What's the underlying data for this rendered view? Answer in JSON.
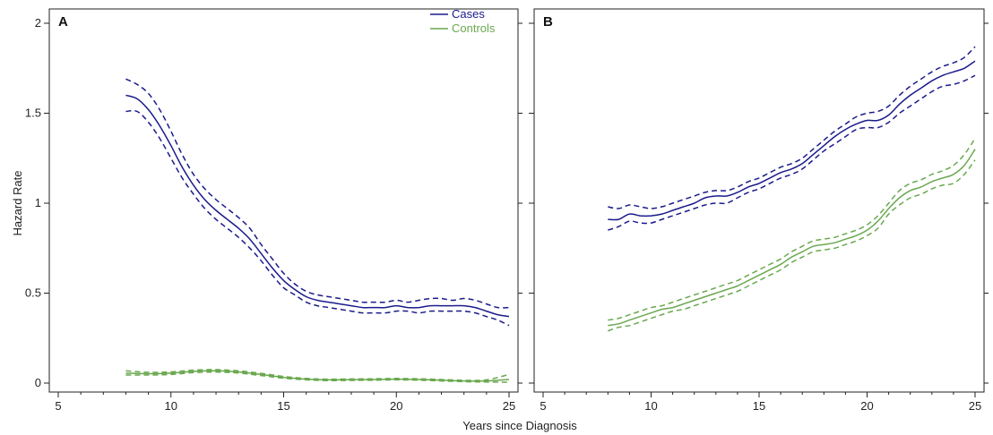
{
  "colors": {
    "cases": "#1a1a8c",
    "controls": "#6aa84f",
    "axis": "#222222"
  },
  "legend": [
    {
      "name": "Cases",
      "color": "#1a1a8c"
    },
    {
      "name": "Controls",
      "color": "#6aa84f"
    }
  ],
  "xlabel": "Years since Diagnosis",
  "ylabel": "Hazard Rate",
  "chart_data": [
    {
      "type": "line",
      "panel": "A",
      "xlim": [
        5,
        25
      ],
      "ylim": [
        0,
        2
      ],
      "xticks": [
        5,
        10,
        15,
        20,
        25
      ],
      "yticks": [
        0,
        0.5,
        1,
        1.5,
        2
      ],
      "legend_position": "top-right",
      "series": [
        {
          "name": "Cases",
          "style": "solid",
          "color": "#1a1a8c",
          "x": [
            8,
            8.5,
            9,
            9.5,
            10,
            10.5,
            11,
            11.5,
            12,
            12.5,
            13,
            13.5,
            14,
            14.5,
            15,
            15.5,
            16,
            16.5,
            17,
            17.5,
            18,
            18.5,
            19,
            19.5,
            20,
            20.5,
            21,
            21.5,
            22,
            22.5,
            23,
            23.5,
            24,
            24.5,
            25
          ],
          "y": [
            1.6,
            1.58,
            1.52,
            1.43,
            1.32,
            1.2,
            1.1,
            1.02,
            0.96,
            0.91,
            0.86,
            0.8,
            0.72,
            0.64,
            0.57,
            0.52,
            0.48,
            0.46,
            0.45,
            0.44,
            0.43,
            0.42,
            0.42,
            0.42,
            0.43,
            0.42,
            0.42,
            0.43,
            0.43,
            0.43,
            0.43,
            0.42,
            0.4,
            0.38,
            0.37
          ]
        },
        {
          "name": "Cases upper CI",
          "style": "dashed",
          "color": "#1a1a8c",
          "x": [
            8,
            8.5,
            9,
            9.5,
            10,
            10.5,
            11,
            11.5,
            12,
            12.5,
            13,
            13.5,
            14,
            14.5,
            15,
            15.5,
            16,
            16.5,
            17,
            17.5,
            18,
            18.5,
            19,
            19.5,
            20,
            20.5,
            21,
            21.5,
            22,
            22.5,
            23,
            23.5,
            24,
            24.5,
            25
          ],
          "y": [
            1.69,
            1.66,
            1.61,
            1.52,
            1.4,
            1.27,
            1.16,
            1.08,
            1.02,
            0.97,
            0.92,
            0.86,
            0.77,
            0.69,
            0.61,
            0.55,
            0.51,
            0.49,
            0.48,
            0.47,
            0.46,
            0.45,
            0.45,
            0.45,
            0.46,
            0.45,
            0.46,
            0.47,
            0.47,
            0.46,
            0.47,
            0.46,
            0.44,
            0.42,
            0.42
          ]
        },
        {
          "name": "Cases lower CI",
          "style": "dashed",
          "color": "#1a1a8c",
          "x": [
            8,
            8.5,
            9,
            9.5,
            10,
            10.5,
            11,
            11.5,
            12,
            12.5,
            13,
            13.5,
            14,
            14.5,
            15,
            15.5,
            16,
            16.5,
            17,
            17.5,
            18,
            18.5,
            19,
            19.5,
            20,
            20.5,
            21,
            21.5,
            22,
            22.5,
            23,
            23.5,
            24,
            24.5,
            25
          ],
          "y": [
            1.51,
            1.51,
            1.45,
            1.36,
            1.25,
            1.14,
            1.05,
            0.97,
            0.91,
            0.86,
            0.81,
            0.75,
            0.68,
            0.6,
            0.53,
            0.49,
            0.45,
            0.43,
            0.42,
            0.41,
            0.4,
            0.39,
            0.39,
            0.39,
            0.4,
            0.4,
            0.39,
            0.4,
            0.4,
            0.4,
            0.4,
            0.39,
            0.37,
            0.35,
            0.32
          ]
        },
        {
          "name": "Controls",
          "style": "solid",
          "color": "#6aa84f",
          "x": [
            8,
            9,
            10,
            11,
            12,
            13,
            14,
            15,
            16,
            17,
            18,
            19,
            20,
            21,
            22,
            23,
            24,
            25
          ],
          "y": [
            0.055,
            0.052,
            0.055,
            0.065,
            0.068,
            0.062,
            0.048,
            0.032,
            0.022,
            0.018,
            0.019,
            0.02,
            0.022,
            0.02,
            0.016,
            0.012,
            0.012,
            0.02
          ]
        },
        {
          "name": "Controls upper CI",
          "style": "dashed",
          "color": "#6aa84f",
          "x": [
            8,
            9,
            10,
            11,
            12,
            13,
            14,
            15,
            16,
            17,
            18,
            19,
            20,
            21,
            22,
            23,
            24,
            25
          ],
          "y": [
            0.068,
            0.06,
            0.062,
            0.072,
            0.075,
            0.068,
            0.054,
            0.037,
            0.026,
            0.022,
            0.023,
            0.024,
            0.026,
            0.024,
            0.02,
            0.016,
            0.018,
            0.048
          ]
        },
        {
          "name": "Controls lower CI",
          "style": "dashed",
          "color": "#6aa84f",
          "x": [
            8,
            9,
            10,
            11,
            12,
            13,
            14,
            15,
            16,
            17,
            18,
            19,
            20,
            21,
            22,
            23,
            24,
            25
          ],
          "y": [
            0.045,
            0.045,
            0.048,
            0.058,
            0.061,
            0.056,
            0.042,
            0.027,
            0.018,
            0.014,
            0.015,
            0.016,
            0.018,
            0.016,
            0.012,
            0.008,
            0.006,
            0.005
          ]
        }
      ]
    },
    {
      "type": "line",
      "panel": "B",
      "xlim": [
        5,
        25
      ],
      "ylim": [
        0,
        2
      ],
      "xticks": [
        5,
        10,
        15,
        20,
        25
      ],
      "yticks": [
        0,
        0.5,
        1,
        1.5,
        2
      ],
      "series": [
        {
          "name": "Cases",
          "style": "solid",
          "color": "#1a1a8c",
          "x": [
            8,
            8.5,
            9,
            9.5,
            10,
            10.5,
            11,
            11.5,
            12,
            12.5,
            13,
            13.5,
            14,
            14.5,
            15,
            15.5,
            16,
            16.5,
            17,
            17.5,
            18,
            18.5,
            19,
            19.5,
            20,
            20.5,
            21,
            21.5,
            22,
            22.5,
            23,
            23.5,
            24,
            24.5,
            25
          ],
          "y": [
            0.91,
            0.91,
            0.94,
            0.93,
            0.93,
            0.94,
            0.96,
            0.98,
            1.0,
            1.03,
            1.04,
            1.04,
            1.06,
            1.09,
            1.11,
            1.14,
            1.17,
            1.19,
            1.22,
            1.27,
            1.32,
            1.37,
            1.41,
            1.44,
            1.46,
            1.46,
            1.49,
            1.55,
            1.6,
            1.64,
            1.68,
            1.71,
            1.73,
            1.75,
            1.79
          ]
        },
        {
          "name": "Cases upper CI",
          "style": "dashed",
          "color": "#1a1a8c",
          "x": [
            8,
            8.5,
            9,
            9.5,
            10,
            10.5,
            11,
            11.5,
            12,
            12.5,
            13,
            13.5,
            14,
            14.5,
            15,
            15.5,
            16,
            16.5,
            17,
            17.5,
            18,
            18.5,
            19,
            19.5,
            20,
            20.5,
            21,
            21.5,
            22,
            22.5,
            23,
            23.5,
            24,
            24.5,
            25
          ],
          "y": [
            0.98,
            0.97,
            0.99,
            0.98,
            0.97,
            0.98,
            1.0,
            1.02,
            1.04,
            1.06,
            1.07,
            1.07,
            1.09,
            1.12,
            1.14,
            1.17,
            1.2,
            1.22,
            1.25,
            1.3,
            1.35,
            1.4,
            1.44,
            1.48,
            1.5,
            1.51,
            1.54,
            1.6,
            1.65,
            1.69,
            1.73,
            1.76,
            1.78,
            1.81,
            1.87
          ]
        },
        {
          "name": "Cases lower CI",
          "style": "dashed",
          "color": "#1a1a8c",
          "x": [
            8,
            8.5,
            9,
            9.5,
            10,
            10.5,
            11,
            11.5,
            12,
            12.5,
            13,
            13.5,
            14,
            14.5,
            15,
            15.5,
            16,
            16.5,
            17,
            17.5,
            18,
            18.5,
            19,
            19.5,
            20,
            20.5,
            21,
            21.5,
            22,
            22.5,
            23,
            23.5,
            24,
            24.5,
            25
          ],
          "y": [
            0.85,
            0.87,
            0.9,
            0.89,
            0.89,
            0.91,
            0.93,
            0.95,
            0.97,
            0.99,
            1.0,
            1.0,
            1.03,
            1.06,
            1.08,
            1.11,
            1.14,
            1.16,
            1.19,
            1.24,
            1.29,
            1.33,
            1.37,
            1.41,
            1.42,
            1.42,
            1.45,
            1.5,
            1.54,
            1.58,
            1.62,
            1.65,
            1.66,
            1.68,
            1.71
          ]
        },
        {
          "name": "Controls",
          "style": "solid",
          "color": "#6aa84f",
          "x": [
            8,
            8.5,
            9,
            9.5,
            10,
            10.5,
            11,
            11.5,
            12,
            12.5,
            13,
            13.5,
            14,
            14.5,
            15,
            15.5,
            16,
            16.5,
            17,
            17.5,
            18,
            18.5,
            19,
            19.5,
            20,
            20.5,
            21,
            21.5,
            22,
            22.5,
            23,
            23.5,
            24,
            24.5,
            25
          ],
          "y": [
            0.32,
            0.33,
            0.35,
            0.37,
            0.39,
            0.41,
            0.42,
            0.44,
            0.46,
            0.48,
            0.5,
            0.52,
            0.54,
            0.57,
            0.6,
            0.63,
            0.66,
            0.7,
            0.73,
            0.76,
            0.77,
            0.78,
            0.8,
            0.82,
            0.85,
            0.9,
            0.97,
            1.03,
            1.07,
            1.09,
            1.12,
            1.14,
            1.16,
            1.21,
            1.3
          ]
        },
        {
          "name": "Controls upper CI",
          "style": "dashed",
          "color": "#6aa84f",
          "x": [
            8,
            8.5,
            9,
            9.5,
            10,
            10.5,
            11,
            11.5,
            12,
            12.5,
            13,
            13.5,
            14,
            14.5,
            15,
            15.5,
            16,
            16.5,
            17,
            17.5,
            18,
            18.5,
            19,
            19.5,
            20,
            20.5,
            21,
            21.5,
            22,
            22.5,
            23,
            23.5,
            24,
            24.5,
            25
          ],
          "y": [
            0.35,
            0.36,
            0.38,
            0.4,
            0.42,
            0.43,
            0.45,
            0.47,
            0.49,
            0.51,
            0.53,
            0.55,
            0.57,
            0.6,
            0.63,
            0.66,
            0.69,
            0.73,
            0.76,
            0.79,
            0.8,
            0.81,
            0.83,
            0.85,
            0.88,
            0.93,
            1.0,
            1.07,
            1.11,
            1.13,
            1.16,
            1.18,
            1.21,
            1.27,
            1.36
          ]
        },
        {
          "name": "Controls lower CI",
          "style": "dashed",
          "color": "#6aa84f",
          "x": [
            8,
            8.5,
            9,
            9.5,
            10,
            10.5,
            11,
            11.5,
            12,
            12.5,
            13,
            13.5,
            14,
            14.5,
            15,
            15.5,
            16,
            16.5,
            17,
            17.5,
            18,
            18.5,
            19,
            19.5,
            20,
            20.5,
            21,
            21.5,
            22,
            22.5,
            23,
            23.5,
            24,
            24.5,
            25
          ],
          "y": [
            0.29,
            0.31,
            0.32,
            0.34,
            0.36,
            0.38,
            0.4,
            0.41,
            0.43,
            0.45,
            0.47,
            0.49,
            0.51,
            0.54,
            0.57,
            0.6,
            0.63,
            0.67,
            0.7,
            0.73,
            0.74,
            0.75,
            0.77,
            0.79,
            0.82,
            0.86,
            0.94,
            0.99,
            1.03,
            1.05,
            1.08,
            1.1,
            1.11,
            1.16,
            1.24
          ]
        }
      ]
    }
  ]
}
